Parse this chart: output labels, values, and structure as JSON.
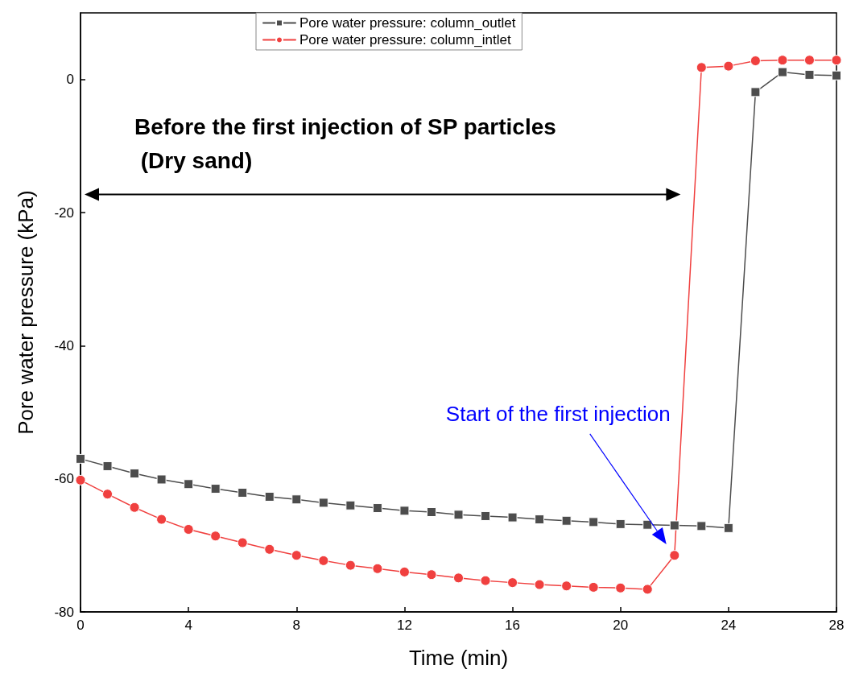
{
  "chart_data": {
    "type": "line",
    "xlabel": "Time (min)",
    "ylabel": "Pore water pressure (kPa)",
    "xlim": [
      0,
      28
    ],
    "xticks": [
      0,
      4,
      8,
      12,
      16,
      20,
      24,
      28
    ],
    "ylim": [
      -80,
      10
    ],
    "yticks": [
      -80,
      -60,
      -40,
      -20,
      0
    ],
    "x": [
      0,
      1,
      2,
      3,
      4,
      5,
      6,
      7,
      8,
      9,
      10,
      11,
      12,
      13,
      14,
      15,
      16,
      17,
      18,
      19,
      20,
      21,
      22,
      23,
      24,
      25,
      26,
      27,
      28
    ],
    "series": [
      {
        "name": "Pore water pressure: column_outlet",
        "color": "#4d4d4d",
        "marker": "square",
        "values": [
          -57.0,
          -58.1,
          -59.2,
          -60.1,
          -60.8,
          -61.5,
          -62.1,
          -62.7,
          -63.1,
          -63.6,
          -64.0,
          -64.4,
          -64.8,
          -65.0,
          -65.4,
          -65.6,
          -65.8,
          -66.1,
          -66.3,
          -66.5,
          -66.8,
          -66.9,
          -67.0,
          -67.1,
          -67.4,
          -1.9,
          1.1,
          0.7,
          0.6
        ]
      },
      {
        "name": "Pore water pressure: column_intlet",
        "color": "#f0403f",
        "marker": "circle",
        "values": [
          -60.2,
          -62.3,
          -64.3,
          -66.1,
          -67.6,
          -68.6,
          -69.6,
          -70.6,
          -71.5,
          -72.3,
          -73.0,
          -73.5,
          -74.0,
          -74.4,
          -74.9,
          -75.3,
          -75.6,
          -75.9,
          -76.1,
          -76.3,
          -76.4,
          -76.6,
          -71.5,
          1.8,
          2.0,
          2.8,
          2.9,
          2.9,
          2.9
        ]
      }
    ],
    "annotations": [
      "Before the first injection of SP particles\n (Dry sand)",
      "Start of the first injection"
    ],
    "grid": false,
    "legend": "top",
    "line_style": "solid"
  }
}
